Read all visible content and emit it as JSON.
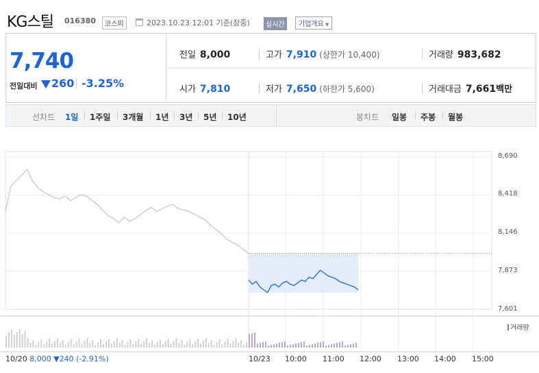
{
  "header": {
    "company_name": "KG스틸",
    "code": "016380",
    "market": "코스피",
    "as_of": "2023.10.23 12:01 기준(장중)",
    "realtime_label": "실시간",
    "company_overview_label": "기업개요"
  },
  "price": {
    "current": "7,740",
    "vs_label": "전일대비",
    "change": "260",
    "change_pct": "-3.25%",
    "direction": "down"
  },
  "stats": {
    "prev_close": {
      "label": "전일",
      "value": "8,000"
    },
    "open": {
      "label": "시가",
      "value": "7,810"
    },
    "high": {
      "label": "고가",
      "value": "7,910",
      "sub": "(상한가 10,400)"
    },
    "low": {
      "label": "저가",
      "value": "7,650",
      "sub": "(하한가 5,600)"
    },
    "volume": {
      "label": "거래량",
      "value": "983,682"
    },
    "trade_value": {
      "label": "거래대금",
      "value": "7,661",
      "unit": "백만"
    }
  },
  "toolbar": {
    "line_chart_label": "선차트",
    "line_periods": [
      "1일",
      "1주일",
      "3개월",
      "1년",
      "3년",
      "5년",
      "10년"
    ],
    "active_period": "1일",
    "candle_chart_label": "봉차트",
    "candle_periods": [
      "일봉",
      "주봉",
      "월봉"
    ]
  },
  "chart_data": {
    "type": "line",
    "y_ticks": [
      "8,690",
      "8,418",
      "8,146",
      "7,873",
      "7,601"
    ],
    "ylim": [
      7601,
      8690
    ],
    "x_ticks": [
      "10/20",
      "10/23",
      "10:00",
      "11:00",
      "12:00",
      "13:00",
      "14:00",
      "15:00"
    ],
    "prev_day_label": "10/20",
    "prev_day_close": "8,000",
    "prev_day_change": "240",
    "prev_day_change_pct": "(-2.91%)",
    "reference_price": 8000,
    "volume_legend": "거래량",
    "series": [
      {
        "color_prev": "#c8c8c8",
        "color_today": "#3a78d4",
        "prev_values": [
          8300,
          8480,
          8520,
          8560,
          8600,
          8520,
          8470,
          8440,
          8420,
          8400,
          8390,
          8410,
          8380,
          8400,
          8420,
          8410,
          8380,
          8350,
          8310,
          8270,
          8250,
          8220,
          8260,
          8230,
          8250,
          8280,
          8310,
          8330,
          8300,
          8320,
          8340,
          8350,
          8320,
          8310,
          8300,
          8280,
          8260,
          8240,
          8200,
          8170,
          8140,
          8100,
          8080,
          8060,
          8030,
          8000
        ],
        "today_values": [
          7810,
          7780,
          7800,
          7760,
          7740,
          7720,
          7770,
          7780,
          7760,
          7790,
          7800,
          7780,
          7770,
          7790,
          7810,
          7800,
          7830,
          7820,
          7850,
          7880,
          7860,
          7840,
          7830,
          7820,
          7800,
          7790,
          7780,
          7770,
          7760,
          7740
        ]
      }
    ]
  }
}
